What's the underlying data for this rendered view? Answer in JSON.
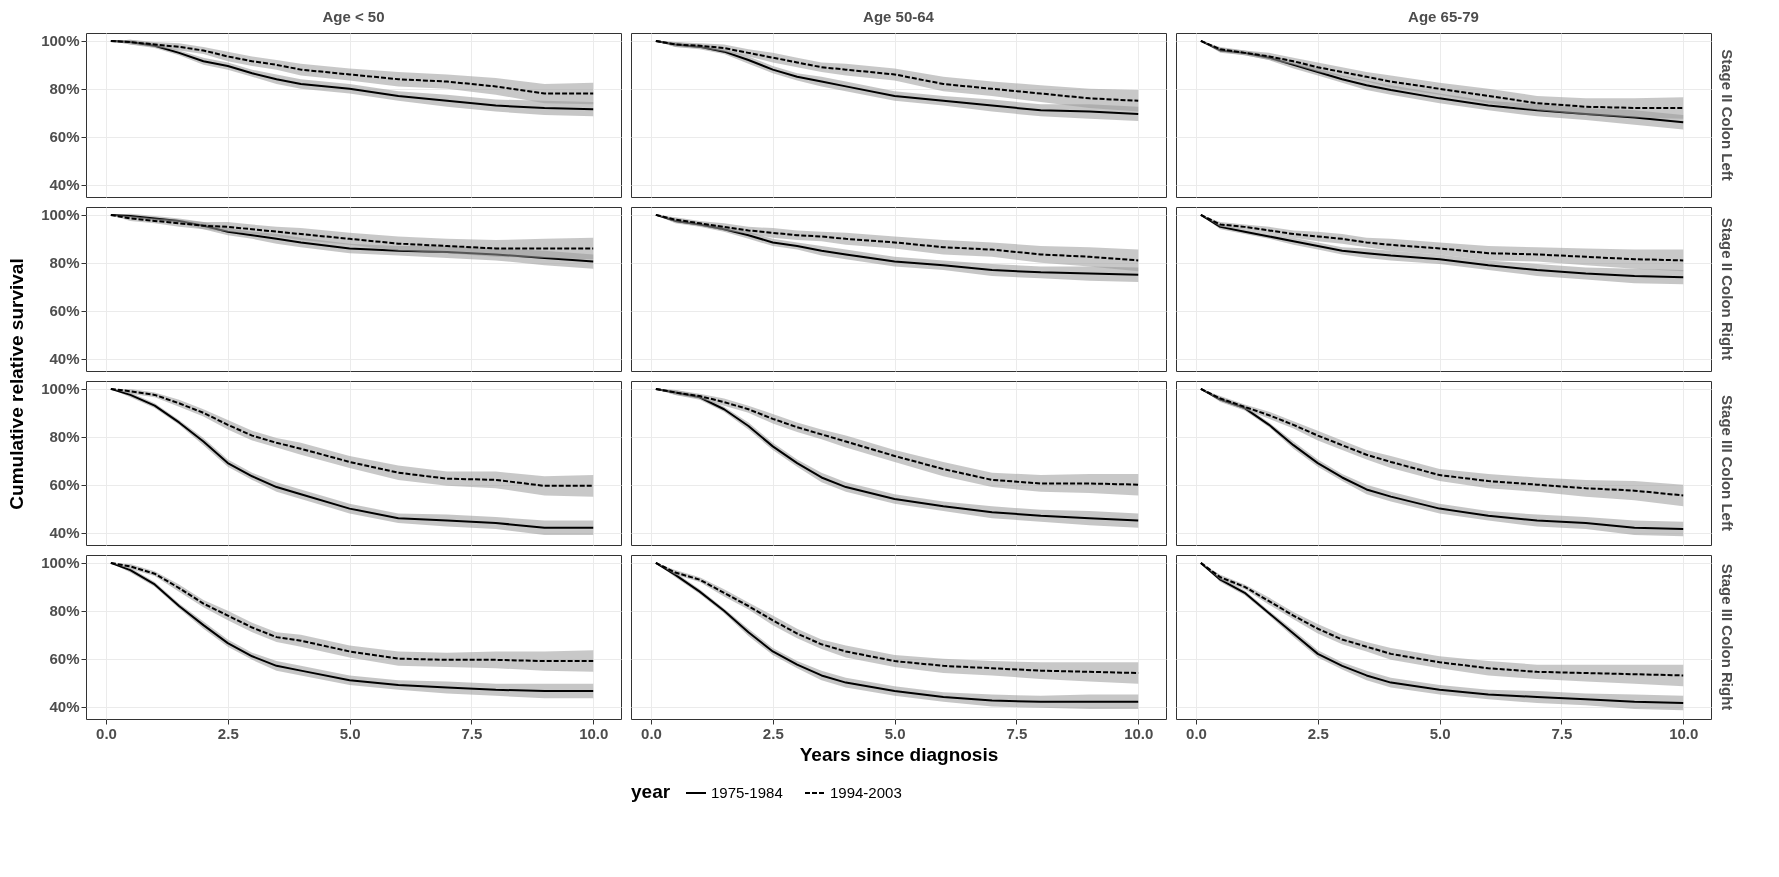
{
  "chart_data": [
    {
      "type": "line",
      "title": "Age < 50",
      "tick_labels": "y",
      "grid": true,
      "x": [
        0.1,
        0.5,
        1,
        1.5,
        2,
        2.5,
        3,
        3.5,
        4,
        5,
        6,
        7,
        8,
        9,
        10
      ],
      "xlim": [
        -0.41,
        10.57
      ],
      "xticks": [
        0,
        2.5,
        5,
        7.5,
        10
      ],
      "ylim": [
        34.8,
        103.3
      ],
      "yticks": [
        {
          "value": 40,
          "label": "40%"
        },
        {
          "value": 60,
          "label": "60%"
        },
        {
          "value": 80,
          "label": "80%"
        },
        {
          "value": 100,
          "label": "100%"
        }
      ],
      "series": [
        {
          "color": "#000000",
          "line_style": "solid",
          "values": [
            100,
            99.5,
            98,
            95,
            91.5,
            89.5,
            86.5,
            84,
            82,
            80,
            77,
            75,
            73,
            72,
            71.5
          ],
          "lower": [
            100,
            98.5,
            97,
            94,
            90,
            88,
            85,
            82,
            80,
            78,
            75,
            72.5,
            70.5,
            69,
            68.5
          ],
          "upper": [
            100,
            100.5,
            99,
            96,
            93,
            91,
            88,
            86,
            84,
            82,
            79,
            77.5,
            75.5,
            75,
            74.5
          ]
        },
        {
          "color": "#000000",
          "line_style": "dashed",
          "values": [
            100,
            99.5,
            98.5,
            97.5,
            96,
            93.5,
            91.5,
            90,
            88,
            86,
            84,
            83,
            81,
            78,
            78
          ],
          "lower": [
            100,
            98.5,
            97.5,
            96,
            94.5,
            91.5,
            89.5,
            88,
            85.5,
            83.5,
            81,
            80,
            77.5,
            74,
            73.5
          ],
          "upper": [
            100,
            100.5,
            99.5,
            99,
            97.5,
            95.5,
            93.5,
            92,
            90.5,
            88.5,
            87,
            86,
            84.5,
            82,
            82.5
          ]
        }
      ]
    },
    {
      "type": "line",
      "title": "Age 50-64",
      "tick_labels": false,
      "grid": true,
      "x": [
        0.1,
        0.5,
        1,
        1.5,
        2,
        2.5,
        3,
        3.5,
        4,
        5,
        6,
        7,
        8,
        9,
        10
      ],
      "xlim": [
        -0.41,
        10.57
      ],
      "xticks": [
        0,
        2.5,
        5,
        7.5,
        10
      ],
      "ylim": [
        34.8,
        103.3
      ],
      "yticks": [
        40,
        60,
        80,
        100
      ],
      "series": [
        {
          "color": "#000000",
          "line_style": "solid",
          "values": [
            100,
            98.5,
            97.5,
            95.5,
            92,
            88,
            85,
            83,
            81,
            77,
            75,
            73,
            71,
            70.5,
            69.5
          ],
          "lower": [
            100,
            97.5,
            96.5,
            94.5,
            90.5,
            86.5,
            83.5,
            81,
            79,
            75,
            73,
            70.5,
            68.5,
            67.5,
            66.5
          ],
          "upper": [
            100,
            99.5,
            98.5,
            96.5,
            93.5,
            89.5,
            86.5,
            85,
            83,
            79,
            77,
            75.5,
            73.5,
            73.5,
            72.5
          ]
        },
        {
          "color": "#000000",
          "line_style": "dashed",
          "values": [
            100,
            98.5,
            98,
            97,
            95,
            93,
            91,
            89,
            88,
            86,
            82,
            80,
            78,
            76,
            75
          ],
          "lower": [
            100,
            97.5,
            97,
            95.5,
            93.5,
            91,
            89,
            87,
            85.5,
            83.5,
            79,
            77,
            74.5,
            72,
            70.5
          ],
          "upper": [
            100,
            99.5,
            99,
            98.5,
            96.5,
            95,
            93,
            91,
            90.5,
            88.5,
            85,
            83,
            81.5,
            80,
            79.5
          ]
        }
      ]
    },
    {
      "type": "line",
      "title": "Age 65-79",
      "annotations": [
        "Stage II Colon Left"
      ],
      "tick_labels": false,
      "grid": true,
      "x": [
        0.1,
        0.5,
        1,
        1.5,
        2,
        2.5,
        3,
        3.5,
        4,
        5,
        6,
        7,
        8,
        9,
        10
      ],
      "xlim": [
        -0.41,
        10.57
      ],
      "xticks": [
        0,
        2.5,
        5,
        7.5,
        10
      ],
      "ylim": [
        34.8,
        103.3
      ],
      "yticks": [
        40,
        60,
        80,
        100
      ],
      "series": [
        {
          "color": "#000000",
          "line_style": "solid",
          "values": [
            100,
            96,
            95,
            93,
            90,
            87,
            84,
            81.5,
            79.5,
            76,
            73,
            71,
            69.5,
            68,
            66
          ],
          "lower": [
            100,
            95,
            94,
            92,
            88.5,
            85.5,
            82.5,
            79.5,
            77.5,
            74,
            71,
            68.5,
            67,
            65,
            63
          ],
          "upper": [
            100,
            97,
            96,
            94,
            91.5,
            88.5,
            85.5,
            83.5,
            81.5,
            78,
            75,
            73.5,
            72,
            71,
            69
          ]
        },
        {
          "color": "#000000",
          "line_style": "dashed",
          "values": [
            100,
            96.5,
            95,
            93.5,
            91.5,
            89,
            87,
            85,
            83,
            80,
            77,
            74,
            72.5,
            72,
            72
          ],
          "lower": [
            100,
            95.5,
            94,
            92,
            90,
            87,
            85,
            83,
            80.5,
            77.5,
            74,
            71,
            69,
            68,
            67.5
          ],
          "upper": [
            100,
            97.5,
            96,
            95,
            93,
            91,
            89,
            87,
            85.5,
            82.5,
            80,
            77,
            76,
            76,
            76.5
          ]
        }
      ]
    },
    {
      "type": "line",
      "tick_labels": "y",
      "grid": true,
      "x": [
        0.1,
        0.5,
        1,
        1.5,
        2,
        2.5,
        3,
        3.5,
        4,
        5,
        6,
        7,
        8,
        9,
        10
      ],
      "xlim": [
        -0.41,
        10.57
      ],
      "xticks": [
        0,
        2.5,
        5,
        7.5,
        10
      ],
      "ylim": [
        34.8,
        103.3
      ],
      "yticks": [
        {
          "value": 40,
          "label": "40%"
        },
        {
          "value": 60,
          "label": "60%"
        },
        {
          "value": 80,
          "label": "80%"
        },
        {
          "value": 100,
          "label": "100%"
        }
      ],
      "ylabel": "Cumulative relative survival",
      "series": [
        {
          "color": "#000000",
          "line_style": "solid",
          "values": [
            100,
            99.5,
            98.5,
            97.5,
            95.5,
            93,
            91.5,
            90,
            88.5,
            86,
            85,
            84.5,
            83.5,
            82,
            80.5
          ],
          "lower": [
            100,
            98.5,
            97.5,
            96.5,
            94,
            91.5,
            90,
            88,
            86.5,
            84,
            83,
            82,
            81,
            79,
            77.5
          ],
          "upper": [
            100,
            100.5,
            99.5,
            98.5,
            97,
            94.5,
            93,
            92,
            90.5,
            88,
            87,
            87,
            86,
            85,
            83.5
          ]
        },
        {
          "color": "#000000",
          "line_style": "dashed",
          "values": [
            100,
            98.5,
            97.5,
            96.5,
            95.5,
            95,
            94,
            93,
            92,
            90,
            88,
            87,
            86,
            86,
            86
          ],
          "lower": [
            100,
            97.5,
            96.5,
            95,
            94,
            93,
            92,
            91,
            89.5,
            87.5,
            85,
            84,
            82.5,
            82,
            81.5
          ],
          "upper": [
            100,
            99.5,
            98.5,
            98,
            97,
            97,
            96,
            95,
            94.5,
            92.5,
            91,
            90,
            89.5,
            90,
            90.5
          ]
        }
      ]
    },
    {
      "type": "line",
      "tick_labels": false,
      "grid": true,
      "x": [
        0.1,
        0.5,
        1,
        1.5,
        2,
        2.5,
        3,
        3.5,
        4,
        5,
        6,
        7,
        8,
        9,
        10
      ],
      "xlim": [
        -0.41,
        10.57
      ],
      "xticks": [
        0,
        2.5,
        5,
        7.5,
        10
      ],
      "ylim": [
        34.8,
        103.3
      ],
      "yticks": [
        40,
        60,
        80,
        100
      ],
      "series": [
        {
          "color": "#000000",
          "line_style": "solid",
          "values": [
            100,
            97.5,
            96,
            94,
            91.5,
            88.5,
            87,
            85,
            83.5,
            80.5,
            79,
            77,
            76,
            75.5,
            75
          ],
          "lower": [
            100,
            96.5,
            95,
            93,
            90,
            87,
            85.5,
            83,
            81.5,
            78.5,
            77,
            74.5,
            73.5,
            72.5,
            72
          ],
          "upper": [
            100,
            98.5,
            97,
            95,
            93,
            90,
            88.5,
            87,
            85.5,
            82.5,
            81,
            79.5,
            78.5,
            78.5,
            78
          ]
        },
        {
          "color": "#000000",
          "line_style": "dashed",
          "values": [
            100,
            98,
            96.5,
            95,
            93.5,
            92.5,
            91.5,
            91,
            90,
            88.5,
            86.5,
            85.5,
            83.5,
            82.5,
            81
          ],
          "lower": [
            100,
            97,
            95.5,
            93.5,
            92,
            90.5,
            89.5,
            89,
            87.5,
            86,
            83.5,
            82.5,
            80,
            78.5,
            76.5
          ],
          "upper": [
            100,
            99,
            97.5,
            96.5,
            95,
            94.5,
            93.5,
            93,
            92.5,
            91,
            89.5,
            88.5,
            87,
            86.5,
            85.5
          ]
        }
      ]
    },
    {
      "type": "line",
      "annotations": [
        "Stage II Colon Right"
      ],
      "tick_labels": false,
      "grid": true,
      "x": [
        0.1,
        0.5,
        1,
        1.5,
        2,
        2.5,
        3,
        3.5,
        4,
        5,
        6,
        7,
        8,
        9,
        10
      ],
      "xlim": [
        -0.41,
        10.57
      ],
      "xticks": [
        0,
        2.5,
        5,
        7.5,
        10
      ],
      "ylim": [
        34.8,
        103.3
      ],
      "yticks": [
        40,
        60,
        80,
        100
      ],
      "series": [
        {
          "color": "#000000",
          "line_style": "solid",
          "values": [
            100,
            95,
            93,
            91,
            89,
            87,
            85,
            84,
            83,
            81.5,
            79,
            77,
            75.5,
            74.5,
            74
          ],
          "lower": [
            100,
            94,
            92,
            90,
            87.5,
            85.5,
            83.5,
            82,
            81,
            79.5,
            77,
            74.5,
            73,
            71.5,
            71
          ],
          "upper": [
            100,
            96,
            94,
            92,
            90.5,
            88.5,
            86.5,
            86,
            85,
            83.5,
            81,
            79.5,
            78,
            77.5,
            77
          ]
        },
        {
          "color": "#000000",
          "line_style": "dashed",
          "values": [
            100,
            96,
            95,
            93.5,
            92,
            91,
            90,
            88.5,
            87.5,
            86,
            84,
            83.5,
            82.5,
            81.5,
            81
          ],
          "lower": [
            100,
            95,
            94,
            92,
            90.5,
            89,
            88,
            86.5,
            85,
            83.5,
            81,
            80.5,
            79,
            77.5,
            76.5
          ],
          "upper": [
            100,
            97,
            96,
            95,
            93.5,
            93,
            92,
            90.5,
            90,
            88.5,
            87,
            86.5,
            86,
            85.5,
            85.5
          ]
        }
      ]
    },
    {
      "type": "line",
      "tick_labels": "y",
      "grid": true,
      "x": [
        0.1,
        0.5,
        1,
        1.5,
        2,
        2.5,
        3,
        3.5,
        4,
        5,
        6,
        7,
        8,
        9,
        10
      ],
      "xlim": [
        -0.41,
        10.57
      ],
      "xticks": [
        0,
        2.5,
        5,
        7.5,
        10
      ],
      "ylim": [
        34.8,
        103.3
      ],
      "yticks": [
        {
          "value": 40,
          "label": "40%"
        },
        {
          "value": 60,
          "label": "60%"
        },
        {
          "value": 80,
          "label": "80%"
        },
        {
          "value": 100,
          "label": "100%"
        }
      ],
      "series": [
        {
          "color": "#000000",
          "line_style": "solid",
          "values": [
            100,
            97.5,
            93,
            86,
            78,
            69,
            63.5,
            59,
            56,
            50,
            46,
            45,
            44,
            42,
            42
          ],
          "lower": [
            100,
            96.5,
            92,
            85,
            76.5,
            67.5,
            62,
            57,
            54,
            48,
            44,
            42.5,
            41.5,
            39,
            39
          ],
          "upper": [
            100,
            98.5,
            94,
            87,
            79.5,
            70.5,
            65,
            61,
            58,
            52,
            48,
            47.5,
            46.5,
            45,
            45
          ]
        },
        {
          "color": "#000000",
          "line_style": "dashed",
          "values": [
            100,
            99,
            97.5,
            94,
            90,
            85,
            80.5,
            77.5,
            75,
            69.5,
            65,
            62.5,
            62,
            59.5,
            59.5
          ],
          "lower": [
            100,
            98,
            96.5,
            92.5,
            88.5,
            83,
            78.5,
            75.5,
            72.5,
            67,
            62,
            59.5,
            58.5,
            55.5,
            55
          ],
          "upper": [
            100,
            100,
            98.5,
            95.5,
            91.5,
            87,
            82.5,
            79.5,
            77.5,
            72,
            68,
            65.5,
            65.5,
            63.5,
            64
          ]
        }
      ]
    },
    {
      "type": "line",
      "tick_labels": false,
      "grid": true,
      "x": [
        0.1,
        0.5,
        1,
        1.5,
        2,
        2.5,
        3,
        3.5,
        4,
        5,
        6,
        7,
        8,
        9,
        10
      ],
      "xlim": [
        -0.41,
        10.57
      ],
      "xticks": [
        0,
        2.5,
        5,
        7.5,
        10
      ],
      "ylim": [
        34.8,
        103.3
      ],
      "yticks": [
        40,
        60,
        80,
        100
      ],
      "series": [
        {
          "color": "#000000",
          "line_style": "solid",
          "values": [
            100,
            98.5,
            96.5,
            91.5,
            84.5,
            76,
            69,
            63,
            59,
            54,
            51,
            48.5,
            47,
            46,
            45
          ],
          "lower": [
            100,
            97.5,
            95.5,
            90.5,
            83,
            74.5,
            67.5,
            61,
            57,
            52,
            49,
            46,
            44.5,
            43,
            42
          ],
          "upper": [
            100,
            99.5,
            97.5,
            92.5,
            86,
            77.5,
            70.5,
            65,
            61,
            56,
            53,
            51,
            49.5,
            49,
            48
          ]
        },
        {
          "color": "#000000",
          "line_style": "dashed",
          "values": [
            100,
            98.5,
            97,
            94.5,
            91.5,
            87.5,
            84,
            81,
            78,
            72,
            66.5,
            62,
            60.5,
            60.5,
            60
          ],
          "lower": [
            100,
            97.5,
            96,
            93,
            90,
            85.5,
            82,
            79,
            75.5,
            69.5,
            63.5,
            59,
            57,
            56.5,
            55.5
          ],
          "upper": [
            100,
            99.5,
            98,
            96,
            93,
            89.5,
            86,
            83,
            80.5,
            74.5,
            69.5,
            65,
            64,
            64.5,
            64.5
          ]
        }
      ]
    },
    {
      "type": "line",
      "annotations": [
        "Stage III Colon Left"
      ],
      "tick_labels": false,
      "grid": true,
      "x": [
        0.1,
        0.5,
        1,
        1.5,
        2,
        2.5,
        3,
        3.5,
        4,
        5,
        6,
        7,
        8,
        9,
        10
      ],
      "xlim": [
        -0.41,
        10.57
      ],
      "xticks": [
        0,
        2.5,
        5,
        7.5,
        10
      ],
      "ylim": [
        34.8,
        103.3
      ],
      "yticks": [
        40,
        60,
        80,
        100
      ],
      "series": [
        {
          "color": "#000000",
          "line_style": "solid",
          "values": [
            100,
            95.5,
            92,
            85,
            76.5,
            69,
            63,
            58,
            55,
            50,
            47,
            45,
            44,
            42,
            41.5
          ],
          "lower": [
            100,
            94.5,
            91,
            84,
            75,
            67.5,
            61.5,
            56,
            53,
            48,
            45,
            42.5,
            41.5,
            39,
            38.5
          ],
          "upper": [
            100,
            96.5,
            93,
            86,
            78,
            70.5,
            64.5,
            60,
            57,
            52,
            49,
            47.5,
            46.5,
            45,
            44.5
          ]
        },
        {
          "color": "#000000",
          "line_style": "dashed",
          "values": [
            100,
            96,
            92.5,
            89,
            85,
            80.5,
            76.5,
            72.5,
            69.5,
            64,
            61.5,
            60,
            58.5,
            57.5,
            55.5
          ],
          "lower": [
            100,
            95,
            91.5,
            87.5,
            83.5,
            78.5,
            74.5,
            70.5,
            67,
            61.5,
            58.5,
            57,
            55,
            53.5,
            51
          ],
          "upper": [
            100,
            97,
            93.5,
            90.5,
            86.5,
            82.5,
            78.5,
            74.5,
            72,
            66.5,
            64.5,
            63,
            62,
            61.5,
            60
          ]
        }
      ]
    },
    {
      "type": "line",
      "grid": true,
      "x": [
        0.1,
        0.5,
        1,
        1.5,
        2,
        2.5,
        3,
        3.5,
        4,
        5,
        6,
        7,
        8,
        9,
        10
      ],
      "xlim": [
        -0.41,
        10.57
      ],
      "xticks": [
        {
          "value": 0,
          "label": "0.0"
        },
        2.5,
        {
          "value": 5,
          "label": "5.0"
        },
        7.5,
        {
          "value": 10,
          "label": "10.0"
        }
      ],
      "ylim": [
        34.8,
        103.3
      ],
      "yticks": [
        {
          "value": 40,
          "label": "40%"
        },
        {
          "value": 60,
          "label": "60%"
        },
        {
          "value": 80,
          "label": "80%"
        },
        {
          "value": 100,
          "label": "100%"
        }
      ],
      "series": [
        {
          "color": "#000000",
          "line_style": "solid",
          "values": [
            100,
            97,
            91,
            82,
            74,
            66.5,
            61,
            57,
            55,
            51,
            49,
            48,
            47,
            46.5,
            46.5
          ],
          "lower": [
            100,
            96,
            90,
            81,
            72.5,
            65,
            59.5,
            55,
            53,
            49,
            47,
            45.5,
            44.5,
            43.5,
            43.5
          ],
          "upper": [
            100,
            98,
            92,
            83,
            75.5,
            68,
            62.5,
            59,
            57,
            53,
            51,
            50.5,
            49.5,
            49.5,
            49.5
          ]
        },
        {
          "color": "#000000",
          "line_style": "dashed",
          "values": [
            100,
            98.5,
            95.5,
            89.5,
            83,
            78,
            73,
            69,
            67.5,
            63,
            60,
            59.5,
            59.5,
            59,
            59
          ],
          "lower": [
            100,
            97.5,
            94.5,
            88,
            81.5,
            76,
            71,
            67,
            65,
            60.5,
            57,
            56.5,
            56,
            55,
            54.5
          ],
          "upper": [
            100,
            99.5,
            96.5,
            91,
            84.5,
            80,
            75,
            71,
            70,
            65.5,
            63,
            62.5,
            63,
            63,
            63.5
          ]
        }
      ]
    },
    {
      "type": "line",
      "tick_labels": "x",
      "grid": true,
      "xlabel": "Years since diagnosis",
      "legend": "bottom",
      "legend_title": "year",
      "x": [
        0.1,
        0.5,
        1,
        1.5,
        2,
        2.5,
        3,
        3.5,
        4,
        5,
        6,
        7,
        8,
        9,
        10
      ],
      "xlim": [
        -0.41,
        10.57
      ],
      "xticks": [
        {
          "value": 0,
          "label": "0.0"
        },
        2.5,
        {
          "value": 5,
          "label": "5.0"
        },
        7.5,
        {
          "value": 10,
          "label": "10.0"
        }
      ],
      "ylim": [
        34.8,
        103.3
      ],
      "yticks": [
        40,
        60,
        80,
        100
      ],
      "series": [
        {
          "name": "1975-1984",
          "color": "#000000",
          "line_style": "solid",
          "values": [
            100,
            95,
            88,
            80,
            71,
            63,
            57.5,
            53,
            50,
            46.5,
            44,
            42.5,
            42,
            42,
            42
          ],
          "lower": [
            100,
            94,
            87,
            79,
            69.5,
            61.5,
            56,
            51,
            48,
            44.5,
            42,
            40,
            39.5,
            39,
            39
          ],
          "upper": [
            100,
            96,
            89,
            81,
            72.5,
            64.5,
            59,
            55,
            52,
            48.5,
            46,
            45,
            44.5,
            45,
            45
          ]
        },
        {
          "name": "1994-2003",
          "color": "#000000",
          "line_style": "dashed",
          "values": [
            100,
            96,
            93,
            87.5,
            82,
            76,
            70.5,
            66,
            63,
            59,
            57,
            56,
            55,
            54.5,
            54
          ],
          "lower": [
            100,
            95,
            92,
            86,
            80.5,
            74,
            68.5,
            64,
            60.5,
            56.5,
            54,
            53,
            51.5,
            50.5,
            49.5
          ],
          "upper": [
            100,
            97,
            94,
            89,
            83.5,
            78,
            72.5,
            68,
            65.5,
            61.5,
            60,
            59,
            58.5,
            58.5,
            58.5
          ]
        }
      ]
    },
    {
      "type": "line",
      "annotations": [
        "Stage III Colon Right"
      ],
      "tick_labels": "x",
      "grid": true,
      "x": [
        0.1,
        0.5,
        1,
        1.5,
        2,
        2.5,
        3,
        3.5,
        4,
        5,
        6,
        7,
        8,
        9,
        10
      ],
      "xlim": [
        -0.41,
        10.57
      ],
      "xticks": [
        {
          "value": 0,
          "label": "0.0"
        },
        2.5,
        {
          "value": 5,
          "label": "5.0"
        },
        7.5,
        {
          "value": 10,
          "label": "10.0"
        }
      ],
      "ylim": [
        34.8,
        103.3
      ],
      "yticks": [
        40,
        60,
        80,
        100
      ],
      "series": [
        {
          "color": "#000000",
          "line_style": "solid",
          "values": [
            100,
            93,
            87.5,
            79,
            70.5,
            62,
            57,
            53,
            50,
            47,
            45,
            44,
            43,
            42,
            41.5
          ],
          "lower": [
            100,
            92,
            86.5,
            78,
            69,
            60.5,
            55.5,
            51,
            48,
            45,
            43,
            41.5,
            40.5,
            39,
            38.5
          ],
          "upper": [
            100,
            94,
            88.5,
            80,
            72,
            63.5,
            58.5,
            55,
            52,
            49,
            47,
            46.5,
            45.5,
            45,
            44.5
          ]
        },
        {
          "color": "#000000",
          "line_style": "dashed",
          "values": [
            100,
            94,
            90,
            84,
            78,
            72.5,
            68,
            65,
            62,
            58.5,
            56,
            54.5,
            54,
            53.5,
            53
          ],
          "lower": [
            100,
            93,
            89,
            82.5,
            76.5,
            70.5,
            66,
            63,
            59.5,
            56,
            53,
            51.5,
            50.5,
            49.5,
            48.5
          ],
          "upper": [
            100,
            95,
            91,
            85.5,
            79.5,
            74.5,
            70,
            67,
            64.5,
            61,
            59,
            57.5,
            57.5,
            57.5,
            57.5
          ]
        }
      ]
    }
  ]
}
